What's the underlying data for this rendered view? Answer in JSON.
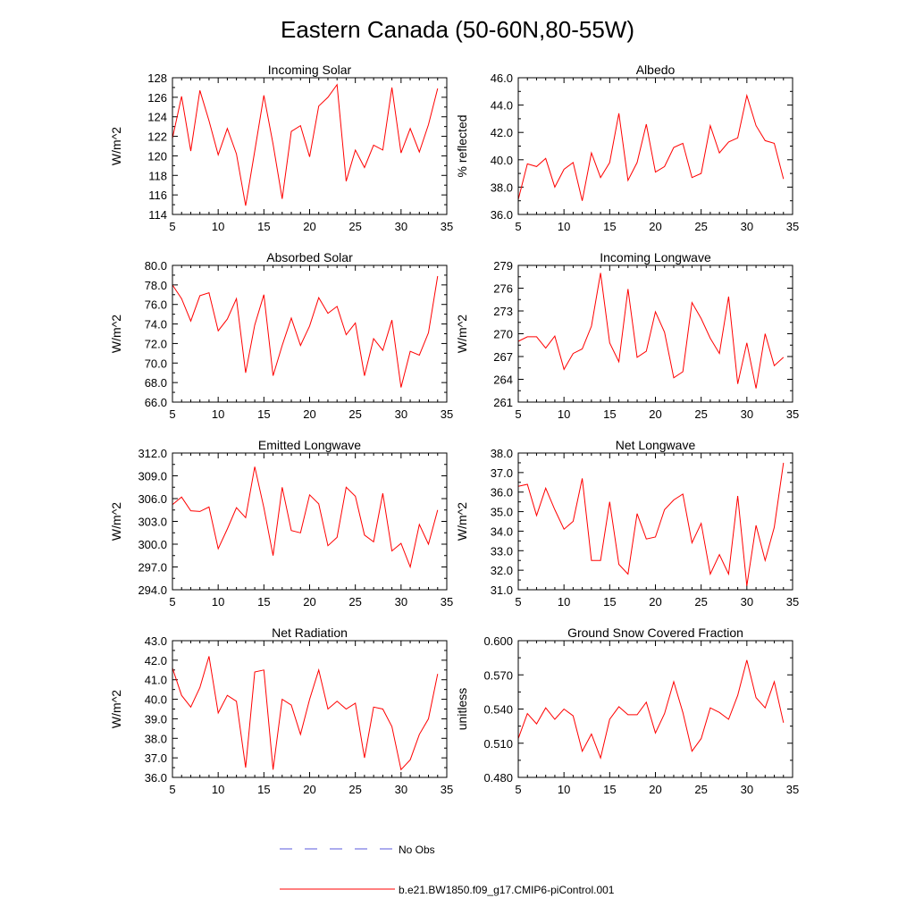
{
  "title": "Eastern Canada (50-60N,80-55W)",
  "colors": {
    "model_line": "#ff0000",
    "obs_line": "#5a5adc",
    "axis": "#000000",
    "background": "#ffffff"
  },
  "legend": {
    "obs_label": "No Obs",
    "model_label": "b.e21.BW1850.f09_g17.CMIP6-piControl.001"
  },
  "chart_data": [
    {
      "type": "line",
      "title": "Incoming Solar",
      "ylabel": "W/m^2",
      "xlabel": "",
      "xlim": [
        5,
        35
      ],
      "xticks": [
        5,
        10,
        15,
        20,
        25,
        30,
        35
      ],
      "xtick_labels": [
        "5",
        "10",
        "15",
        "20",
        "25",
        "30",
        "35"
      ],
      "ylim": [
        114,
        128
      ],
      "yticks": [
        114,
        116,
        118,
        120,
        122,
        124,
        126,
        128
      ],
      "ytick_labels": [
        "114",
        "116",
        "118",
        "120",
        "122",
        "124",
        "126",
        "128"
      ],
      "series": [
        {
          "name": "b.e21.BW1850.f09_g17.CMIP6-piControl.001",
          "x": [
            5,
            6,
            7,
            8,
            9,
            10,
            11,
            12,
            13,
            14,
            15,
            16,
            17,
            18,
            19,
            20,
            21,
            22,
            23,
            24,
            25,
            26,
            27,
            28,
            29,
            30,
            31,
            32,
            33,
            34
          ],
          "values": [
            121.8,
            126.1,
            120.5,
            126.7,
            123.6,
            120.1,
            122.8,
            120.2,
            114.9,
            120.5,
            126.2,
            121.2,
            115.6,
            122.5,
            123.1,
            119.9,
            125.1,
            126.0,
            127.3,
            117.4,
            120.6,
            118.8,
            121.1,
            120.6,
            127.0,
            120.3,
            122.8,
            120.4,
            123.2,
            126.9
          ]
        }
      ]
    },
    {
      "type": "line",
      "title": "Albedo",
      "ylabel": "% reflected",
      "xlabel": "",
      "xlim": [
        5,
        35
      ],
      "xticks": [
        5,
        10,
        15,
        20,
        25,
        30,
        35
      ],
      "xtick_labels": [
        "5",
        "10",
        "15",
        "20",
        "25",
        "30",
        "35"
      ],
      "ylim": [
        36,
        46
      ],
      "yticks": [
        36,
        38,
        40,
        42,
        44,
        46
      ],
      "ytick_labels": [
        "36.0",
        "38.0",
        "40.0",
        "42.0",
        "44.0",
        "46.0"
      ],
      "series": [
        {
          "name": "b.e21.BW1850.f09_g17.CMIP6-piControl.001",
          "x": [
            5,
            6,
            7,
            8,
            9,
            10,
            11,
            12,
            13,
            14,
            15,
            16,
            17,
            18,
            19,
            20,
            21,
            22,
            23,
            24,
            25,
            26,
            27,
            28,
            29,
            30,
            31,
            32,
            33,
            34
          ],
          "values": [
            37.1,
            39.7,
            39.5,
            40.1,
            38.0,
            39.3,
            39.8,
            37.0,
            40.5,
            38.7,
            39.8,
            43.4,
            38.5,
            39.8,
            42.6,
            39.1,
            39.5,
            40.9,
            41.2,
            38.7,
            39.0,
            42.5,
            40.5,
            41.3,
            41.6,
            44.7,
            42.5,
            41.4,
            41.2,
            38.6
          ]
        }
      ]
    },
    {
      "type": "line",
      "title": "Absorbed Solar",
      "ylabel": "W/m^2",
      "xlabel": "",
      "xlim": [
        5,
        35
      ],
      "xticks": [
        5,
        10,
        15,
        20,
        25,
        30,
        35
      ],
      "xtick_labels": [
        "5",
        "10",
        "15",
        "20",
        "25",
        "30",
        "35"
      ],
      "ylim": [
        66,
        80
      ],
      "yticks": [
        66,
        68,
        70,
        72,
        74,
        76,
        78,
        80
      ],
      "ytick_labels": [
        "66.0",
        "68.0",
        "70.0",
        "72.0",
        "74.0",
        "76.0",
        "78.0",
        "80.0"
      ],
      "series": [
        {
          "name": "b.e21.BW1850.f09_g17.CMIP6-piControl.001",
          "x": [
            5,
            6,
            7,
            8,
            9,
            10,
            11,
            12,
            13,
            14,
            15,
            16,
            17,
            18,
            19,
            20,
            21,
            22,
            23,
            24,
            25,
            26,
            27,
            28,
            29,
            30,
            31,
            32,
            33,
            34
          ],
          "values": [
            78.0,
            76.6,
            74.3,
            76.9,
            77.2,
            73.3,
            74.5,
            76.6,
            69.0,
            73.9,
            77.0,
            68.7,
            71.8,
            74.6,
            71.8,
            73.8,
            76.7,
            75.1,
            75.8,
            72.9,
            74.1,
            68.7,
            72.5,
            71.3,
            74.4,
            67.5,
            71.2,
            70.8,
            73.1,
            78.9
          ]
        }
      ]
    },
    {
      "type": "line",
      "title": "Incoming Longwave",
      "ylabel": "W/m^2",
      "xlabel": "",
      "xlim": [
        5,
        35
      ],
      "xticks": [
        5,
        10,
        15,
        20,
        25,
        30,
        35
      ],
      "xtick_labels": [
        "5",
        "10",
        "15",
        "20",
        "25",
        "30",
        "35"
      ],
      "ylim": [
        261,
        279
      ],
      "yticks": [
        261,
        264,
        267,
        270,
        273,
        276,
        279
      ],
      "ytick_labels": [
        "261",
        "264",
        "267",
        "270",
        "273",
        "276",
        "279"
      ],
      "series": [
        {
          "name": "b.e21.BW1850.f09_g17.CMIP6-piControl.001",
          "x": [
            5,
            6,
            7,
            8,
            9,
            10,
            11,
            12,
            13,
            14,
            15,
            16,
            17,
            18,
            19,
            20,
            21,
            22,
            23,
            24,
            25,
            26,
            27,
            28,
            29,
            30,
            31,
            32,
            33,
            34
          ],
          "values": [
            269.0,
            269.6,
            269.6,
            268.1,
            269.7,
            265.3,
            267.4,
            268.0,
            271.0,
            278.0,
            268.8,
            266.3,
            275.9,
            266.9,
            267.7,
            272.9,
            270.2,
            264.2,
            265.0,
            274.1,
            272.0,
            269.4,
            267.4,
            274.9,
            263.4,
            268.8,
            262.8,
            270.0,
            265.8,
            266.9
          ]
        }
      ]
    },
    {
      "type": "line",
      "title": "Emitted Longwave",
      "ylabel": "W/m^2",
      "xlabel": "",
      "xlim": [
        5,
        35
      ],
      "xticks": [
        5,
        10,
        15,
        20,
        25,
        30,
        35
      ],
      "xtick_labels": [
        "5",
        "10",
        "15",
        "20",
        "25",
        "30",
        "35"
      ],
      "ylim": [
        294,
        312
      ],
      "yticks": [
        294,
        297,
        300,
        303,
        306,
        309,
        312
      ],
      "ytick_labels": [
        "294.0",
        "297.0",
        "300.0",
        "303.0",
        "306.0",
        "309.0",
        "312.0"
      ],
      "series": [
        {
          "name": "b.e21.BW1850.f09_g17.CMIP6-piControl.001",
          "x": [
            5,
            6,
            7,
            8,
            9,
            10,
            11,
            12,
            13,
            14,
            15,
            16,
            17,
            18,
            19,
            20,
            21,
            22,
            23,
            24,
            25,
            26,
            27,
            28,
            29,
            30,
            31,
            32,
            33,
            34
          ],
          "values": [
            305.2,
            306.2,
            304.4,
            304.3,
            304.9,
            299.4,
            302.0,
            304.8,
            303.5,
            310.2,
            304.8,
            298.5,
            307.5,
            301.8,
            301.5,
            306.5,
            305.3,
            299.8,
            300.9,
            307.5,
            306.3,
            301.2,
            300.3,
            306.7,
            299.1,
            300.1,
            297.0,
            302.6,
            300.0,
            304.5
          ]
        }
      ]
    },
    {
      "type": "line",
      "title": "Net Longwave",
      "ylabel": "W/m^2",
      "xlabel": "",
      "xlim": [
        5,
        35
      ],
      "xticks": [
        5,
        10,
        15,
        20,
        25,
        30,
        35
      ],
      "xtick_labels": [
        "5",
        "10",
        "15",
        "20",
        "25",
        "30",
        "35"
      ],
      "ylim": [
        31,
        38
      ],
      "yticks": [
        31,
        32,
        33,
        34,
        35,
        36,
        37,
        38
      ],
      "ytick_labels": [
        "31.0",
        "32.0",
        "33.0",
        "34.0",
        "35.0",
        "36.0",
        "37.0",
        "38.0"
      ],
      "series": [
        {
          "name": "b.e21.BW1850.f09_g17.CMIP6-piControl.001",
          "x": [
            5,
            6,
            7,
            8,
            9,
            10,
            11,
            12,
            13,
            14,
            15,
            16,
            17,
            18,
            19,
            20,
            21,
            22,
            23,
            24,
            25,
            26,
            27,
            28,
            29,
            30,
            31,
            32,
            33,
            34
          ],
          "values": [
            36.3,
            36.4,
            34.8,
            36.2,
            35.1,
            34.1,
            34.5,
            36.7,
            32.5,
            32.5,
            35.5,
            32.3,
            31.8,
            34.9,
            33.6,
            33.7,
            35.1,
            35.6,
            35.9,
            33.4,
            34.4,
            31.8,
            32.8,
            31.8,
            35.8,
            31.2,
            34.3,
            32.5,
            34.2,
            37.5
          ]
        }
      ]
    },
    {
      "type": "line",
      "title": "Net Radiation",
      "ylabel": "W/m^2",
      "xlabel": "",
      "xlim": [
        5,
        35
      ],
      "xticks": [
        5,
        10,
        15,
        20,
        25,
        30,
        35
      ],
      "xtick_labels": [
        "5",
        "10",
        "15",
        "20",
        "25",
        "30",
        "35"
      ],
      "ylim": [
        36,
        43
      ],
      "yticks": [
        36,
        37,
        38,
        39,
        40,
        41,
        42,
        43
      ],
      "ytick_labels": [
        "36.0",
        "37.0",
        "38.0",
        "39.0",
        "40.0",
        "41.0",
        "42.0",
        "43.0"
      ],
      "series": [
        {
          "name": "b.e21.BW1850.f09_g17.CMIP6-piControl.001",
          "x": [
            5,
            6,
            7,
            8,
            9,
            10,
            11,
            12,
            13,
            14,
            15,
            16,
            17,
            18,
            19,
            20,
            21,
            22,
            23,
            24,
            25,
            26,
            27,
            28,
            29,
            30,
            31,
            32,
            33,
            34
          ],
          "values": [
            41.6,
            40.2,
            39.6,
            40.6,
            42.2,
            39.3,
            40.2,
            39.9,
            36.5,
            41.4,
            41.5,
            36.4,
            40.0,
            39.7,
            38.2,
            40.0,
            41.5,
            39.5,
            39.9,
            39.5,
            39.8,
            37.0,
            39.6,
            39.5,
            38.6,
            36.4,
            36.9,
            38.2,
            39.0,
            41.3
          ]
        }
      ]
    },
    {
      "type": "line",
      "title": "Ground Snow Covered Fraction",
      "ylabel": "unitless",
      "xlabel": "",
      "xlim": [
        5,
        35
      ],
      "xticks": [
        5,
        10,
        15,
        20,
        25,
        30,
        35
      ],
      "xtick_labels": [
        "5",
        "10",
        "15",
        "20",
        "25",
        "30",
        "35"
      ],
      "ylim": [
        0.48,
        0.6
      ],
      "yticks": [
        0.48,
        0.51,
        0.54,
        0.57,
        0.6
      ],
      "ytick_labels": [
        "0.480",
        "0.510",
        "0.540",
        "0.570",
        "0.600"
      ],
      "series": [
        {
          "name": "b.e21.BW1850.f09_g17.CMIP6-piControl.001",
          "x": [
            5,
            6,
            7,
            8,
            9,
            10,
            11,
            12,
            13,
            14,
            15,
            16,
            17,
            18,
            19,
            20,
            21,
            22,
            23,
            24,
            25,
            26,
            27,
            28,
            29,
            30,
            31,
            32,
            33,
            34
          ],
          "values": [
            0.514,
            0.536,
            0.527,
            0.541,
            0.531,
            0.54,
            0.534,
            0.503,
            0.518,
            0.497,
            0.531,
            0.542,
            0.535,
            0.535,
            0.546,
            0.519,
            0.536,
            0.564,
            0.537,
            0.503,
            0.514,
            0.541,
            0.537,
            0.531,
            0.552,
            0.583,
            0.55,
            0.541,
            0.564,
            0.528
          ]
        }
      ]
    }
  ]
}
